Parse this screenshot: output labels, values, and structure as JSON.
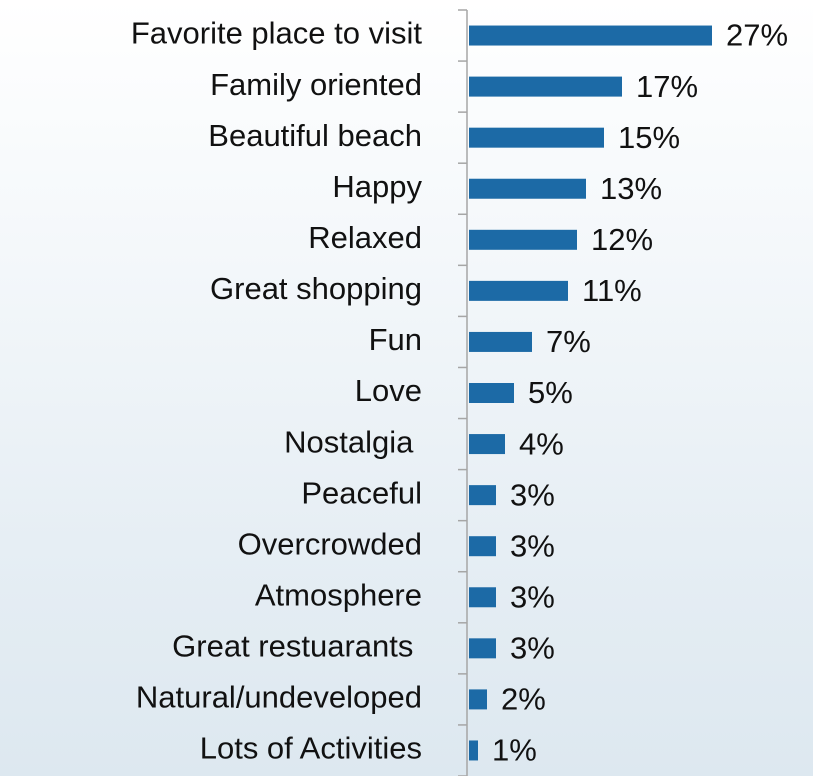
{
  "chart_data": {
    "type": "barh",
    "categories": [
      "Favorite place to visit",
      "Family oriented",
      "Beautiful beach",
      "Happy",
      "Relaxed",
      "Great shopping",
      "Fun",
      "Love",
      "Nostalgia ",
      "Peaceful",
      "Overcrowded",
      "Atmosphere",
      "Great restuarants ",
      "Natural/undeveloped",
      "Lots of Activities"
    ],
    "values": [
      27,
      17,
      15,
      13,
      12,
      11,
      7,
      5,
      4,
      3,
      3,
      3,
      3,
      2,
      1
    ],
    "value_labels": [
      "27%",
      "17%",
      "15%",
      "13%",
      "12%",
      "11%",
      "7%",
      "5%",
      "4%",
      "3%",
      "3%",
      "3%",
      "3%",
      "2%",
      "1%"
    ],
    "color": "#1c6aa6"
  }
}
